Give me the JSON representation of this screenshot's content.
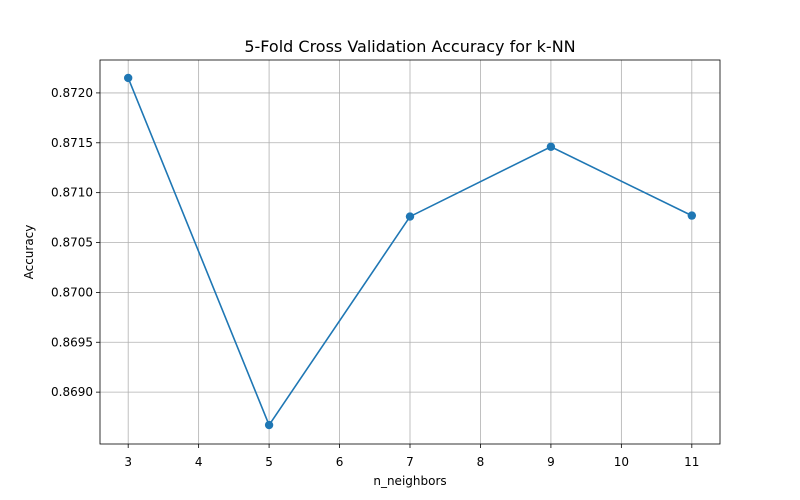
{
  "chart_data": {
    "type": "line",
    "title": "5-Fold Cross Validation Accuracy for k-NN",
    "xlabel": "n_neighbors",
    "ylabel": "Accuracy",
    "x": [
      3,
      5,
      7,
      9,
      11
    ],
    "series": [
      {
        "values": [
          0.87215,
          0.86867,
          0.87076,
          0.87146,
          0.87077
        ],
        "color": "#1f77b4",
        "marker": "circle"
      }
    ],
    "xlim": [
      2.6,
      11.4
    ],
    "ylim": [
      0.86848,
      0.87233
    ],
    "xticks": [
      3,
      4,
      5,
      6,
      7,
      8,
      9,
      10,
      11
    ],
    "yticks": [
      0.869,
      0.8695,
      0.87,
      0.8705,
      0.871,
      0.8715,
      0.872
    ],
    "ytick_labels": [
      "0.8690",
      "0.8695",
      "0.8700",
      "0.8705",
      "0.8710",
      "0.8715",
      "0.8720"
    ],
    "grid": true,
    "legend": false
  }
}
